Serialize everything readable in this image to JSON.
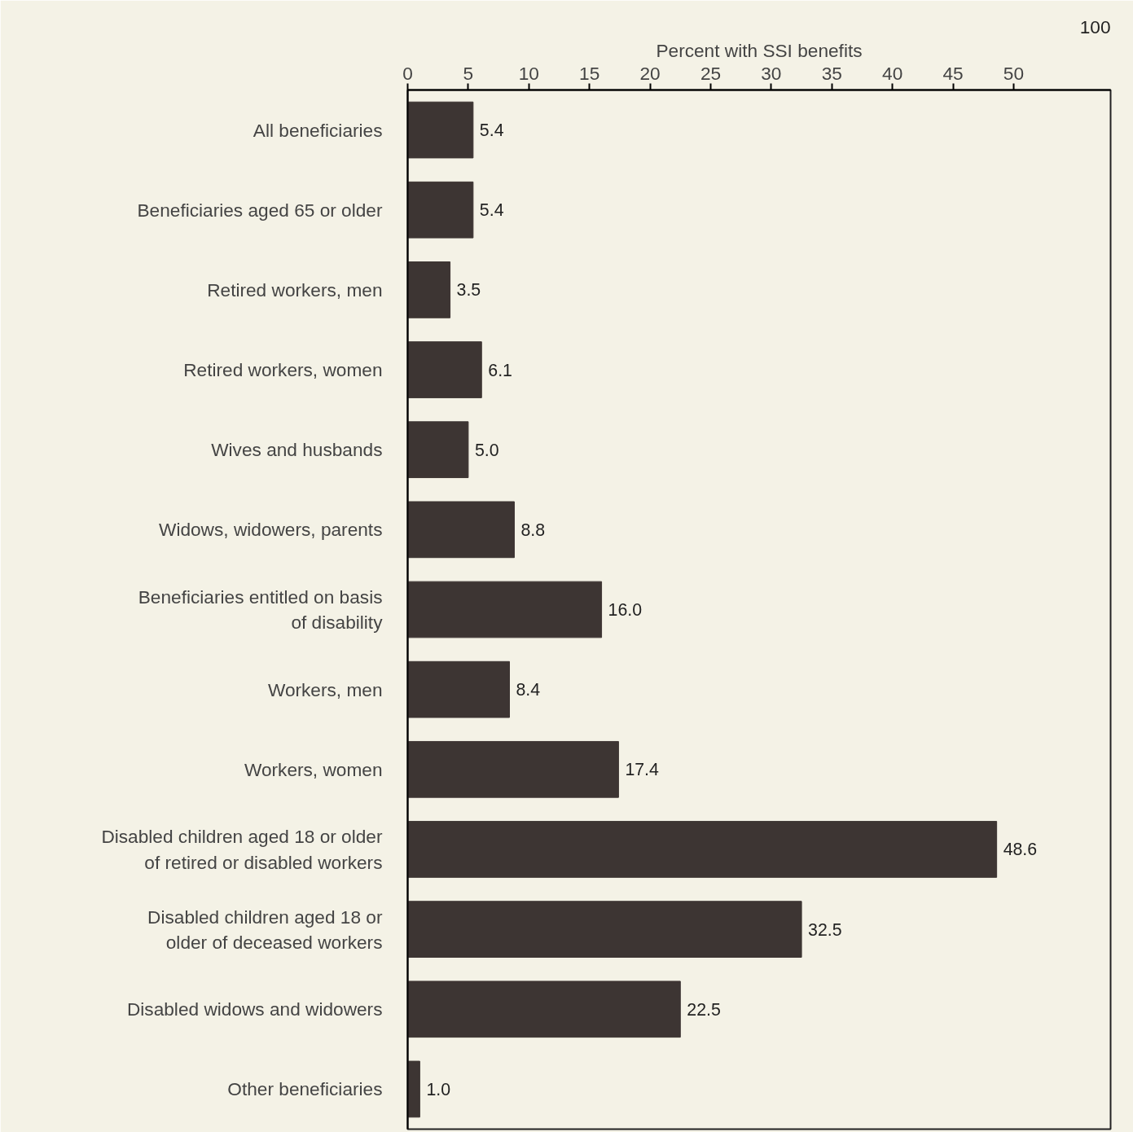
{
  "chart_data": {
    "type": "bar",
    "orientation": "horizontal",
    "xlabel": "Percent with SSI benefits",
    "categories": [
      "All beneficiaries",
      "Beneficiaries aged 65 or older",
      "Retired workers, men",
      "Retired workers, women",
      "Wives and husbands",
      "Widows, widowers, parents",
      "Beneficiaries entitled on basis\nof disability",
      "Workers, men",
      "Workers, women",
      "Disabled children aged 18 or older\nof retired or disabled workers",
      "Disabled children aged 18 or\nolder of deceased workers",
      "Disabled widows and widowers",
      "Other beneficiaries"
    ],
    "values": [
      5.4,
      5.4,
      3.5,
      6.1,
      5.0,
      8.8,
      16.0,
      8.4,
      17.4,
      48.6,
      32.5,
      22.5,
      1.0
    ],
    "value_labels": [
      "5.4",
      "5.4",
      "3.5",
      "6.1",
      "5.0",
      "8.8",
      "16.0",
      "8.4",
      "17.4",
      "48.6",
      "32.5",
      "22.5",
      "1.0"
    ],
    "color": "#3d3533",
    "xlim": [
      0,
      58
    ],
    "xticks": [
      0,
      5,
      10,
      15,
      20,
      25,
      30,
      35,
      40,
      45,
      50
    ],
    "annotations": [
      "100"
    ],
    "grid": false
  }
}
